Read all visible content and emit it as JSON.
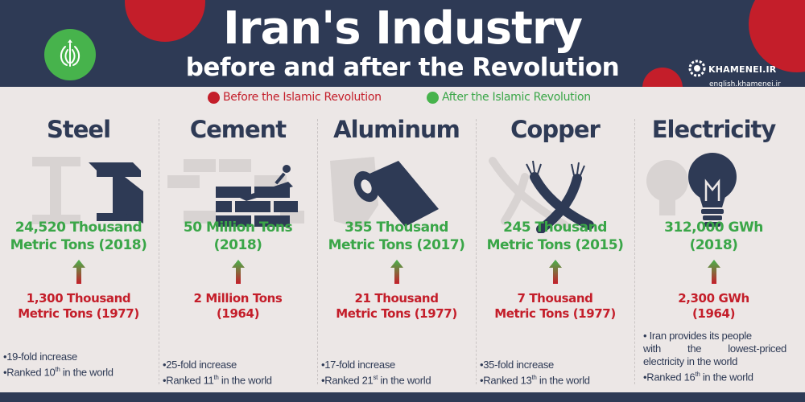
{
  "header": {
    "title": "Iran's Industry",
    "subtitle": "before and after the Revolution",
    "brand_name": "KHAMENEI.IR",
    "brand_url": "english.khamenei.ir"
  },
  "legend": {
    "before_label": "Before the Islamic Revolution",
    "after_label": "After the Islamic Revolution",
    "before_color": "#c41e2a",
    "after_color": "#47b34c"
  },
  "colors": {
    "navy": "#2e3a55",
    "panel": "#ece7e6",
    "green_text": "#3aa648",
    "red_text": "#c41e2a"
  },
  "industries": [
    {
      "name": "Steel",
      "icon": "steel-beam-icon",
      "after_line1": "24,520 Thousand",
      "after_line2": "Metric Tons (2018)",
      "before_line1": "1,300 Thousand",
      "before_line2": "Metric Tons (1977)",
      "note1": "•19-fold increase",
      "note2_pre": "•Ranked 10",
      "note2_sup": "th",
      "note2_post": " in the world"
    },
    {
      "name": "Cement",
      "icon": "brick-trowel-icon",
      "after_line1": "50 Million Tons",
      "after_line2": "(2018)",
      "before_line1": "2 Million Tons",
      "before_line2": "(1964)",
      "note1": "•25-fold increase",
      "note2_pre": "•Ranked 11",
      "note2_sup": "th",
      "note2_post": " in the world"
    },
    {
      "name": "Aluminum",
      "icon": "aluminum-roll-icon",
      "after_line1": "355 Thousand",
      "after_line2": "Metric Tons (2017)",
      "before_line1": "21 Thousand",
      "before_line2": "Metric Tons (1977)",
      "note1": "•17-fold increase",
      "note2_pre": "•Ranked 21",
      "note2_sup": "st",
      "note2_post": " in the world"
    },
    {
      "name": "Copper",
      "icon": "copper-wire-icon",
      "after_line1": "245 Thousand",
      "after_line2": "Metric Tons (2015)",
      "before_line1": "7 Thousand",
      "before_line2": "Metric Tons (1977)",
      "note1": "•35-fold increase",
      "note2_pre": "•Ranked 13",
      "note2_sup": "th",
      "note2_post": " in the world"
    },
    {
      "name": "Electricity",
      "icon": "light-bulb-icon",
      "after_line1": "312,000 GWh",
      "after_line2": "(2018)",
      "before_line1": "2,300 GWh",
      "before_line2": "(1964)",
      "note_a": "• Iran provides its people",
      "note_b": "with the lowest-priced",
      "note_c": "electricity in the world",
      "note2_pre": "•Ranked 16",
      "note2_sup": "th",
      "note2_post": " in the world"
    }
  ]
}
